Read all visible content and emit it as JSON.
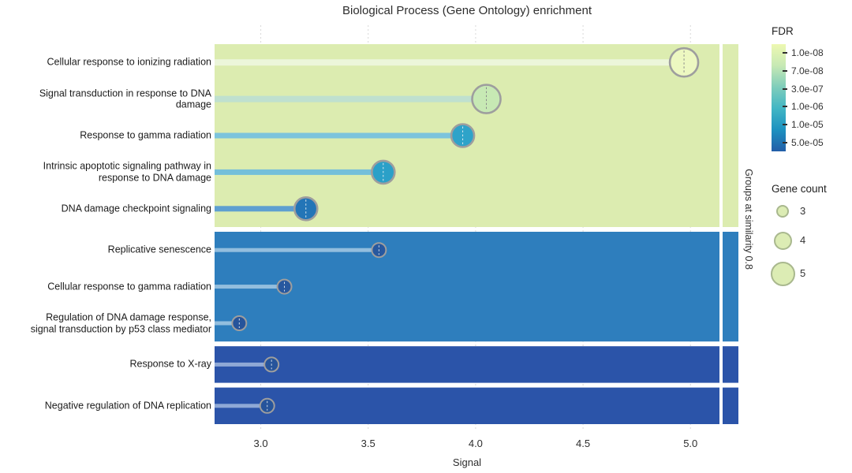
{
  "title": "Biological Process (Gene Ontology) enrichment",
  "chart_data": {
    "type": "scatter",
    "variant": "lollipop-dot-plot",
    "title": "Biological Process (Gene Ontology) enrichment",
    "xlabel": "Signal",
    "x_range": [
      2.785,
      5.135
    ],
    "x_ticks": [
      "3.0",
      "3.5",
      "4.0",
      "4.5",
      "5.0"
    ],
    "x_tick_values": [
      3.0,
      3.5,
      4.0,
      4.5,
      5.0
    ],
    "right_axis_label": "Groups at similarity 0.8",
    "grid": true,
    "legend_position": "right",
    "groups": [
      {
        "band_color": "#dcecb0",
        "row_count": 5
      },
      {
        "band_color": "#2e7ebd",
        "row_count": 3
      },
      {
        "band_color": "#2b54a9",
        "row_count": 1
      },
      {
        "band_color": "#2b54a9",
        "row_count": 1
      }
    ],
    "rows": [
      {
        "label": "Cellular response to ionizing radiation",
        "signal": 4.97,
        "gene_count": 5,
        "group": 0,
        "dot_color": "#edf8c1",
        "stem_color": "#ecf6da",
        "dash_color": "#8a8a8a"
      },
      {
        "label": "Signal transduction in response to DNA damage",
        "signal": 4.05,
        "gene_count": 5,
        "group": 0,
        "dot_color": "#c7e9b4",
        "stem_color": "#bfe0cf",
        "dash_color": "#8a8a8a"
      },
      {
        "label": "Response to gamma radiation",
        "signal": 3.94,
        "gene_count": 4,
        "group": 0,
        "dot_color": "#2ea3c9",
        "stem_color": "#7cc4dc",
        "dash_color": "#d8e6ee"
      },
      {
        "label": "Intrinsic apoptotic signaling pathway in response to DNA damage",
        "signal": 3.57,
        "gene_count": 4,
        "group": 0,
        "dot_color": "#2ba0c8",
        "stem_color": "#74bfda",
        "dash_color": "#d8e6ee"
      },
      {
        "label": "DNA damage checkpoint signaling",
        "signal": 3.21,
        "gene_count": 4,
        "group": 0,
        "dot_color": "#2375b7",
        "stem_color": "#5e9fd0",
        "dash_color": "#d8e6ee"
      },
      {
        "label": "Replicative senescence",
        "signal": 3.55,
        "gene_count": 3,
        "group": 1,
        "dot_color": "#27589f",
        "stem_color": "#93bede",
        "dash_color": "#cfdbe8"
      },
      {
        "label": "Cellular response to gamma radiation",
        "signal": 3.11,
        "gene_count": 3,
        "group": 1,
        "dot_color": "#27589f",
        "stem_color": "#93bede",
        "dash_color": "#cfdbe8"
      },
      {
        "label": "Regulation of DNA damage response, signal transduction by p53 class mediator",
        "signal": 2.9,
        "gene_count": 3,
        "group": 1,
        "dot_color": "#26549b",
        "stem_color": "#93bede",
        "dash_color": "#cfdbe8"
      },
      {
        "label": "Response to X-ray",
        "signal": 3.05,
        "gene_count": 3,
        "group": 2,
        "dot_color": "#26549b",
        "stem_color": "#8fa9d6",
        "dash_color": "#cfdbe8"
      },
      {
        "label": "Negative regulation of DNA replication",
        "signal": 3.03,
        "gene_count": 3,
        "group": 3,
        "dot_color": "#26549b",
        "stem_color": "#8fa9d6",
        "dash_color": "#cfdbe8"
      }
    ],
    "fdr_legend": {
      "title": "FDR",
      "entries": [
        {
          "label": "1.0e-08",
          "color": "#edf8b1"
        },
        {
          "label": "7.0e-08",
          "color": "#c7e9b4"
        },
        {
          "label": "3.0e-07",
          "color": "#7fcdbb"
        },
        {
          "label": "1.0e-06",
          "color": "#41b6c4"
        },
        {
          "label": "1.0e-05",
          "color": "#1d91c0"
        },
        {
          "label": "5.0e-05",
          "color": "#225ea8"
        }
      ]
    },
    "gene_count_legend": {
      "title": "Gene count",
      "entries": [
        {
          "label": "3",
          "radius": 8
        },
        {
          "label": "4",
          "radius": 11.5
        },
        {
          "label": "5",
          "radius": 15.5
        }
      ],
      "circle_fill": "#dcecb4",
      "circle_stroke": "#a9b88e"
    }
  }
}
